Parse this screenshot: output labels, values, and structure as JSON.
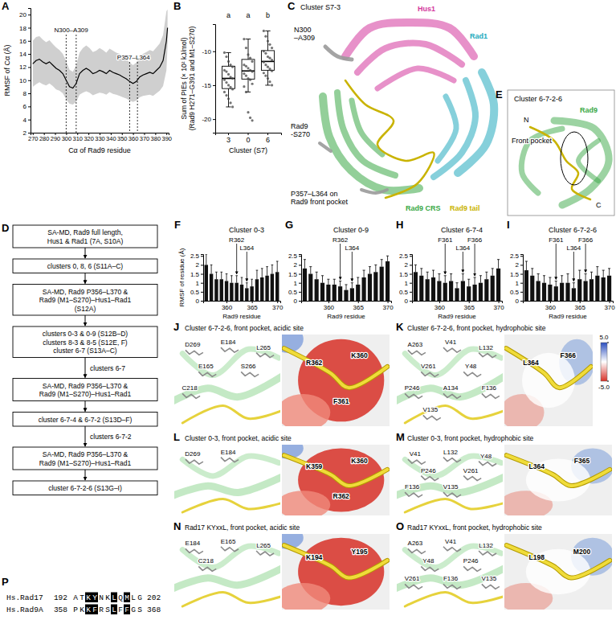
{
  "chart_data": [
    {
      "panel": "A",
      "type": "line",
      "y_label": "RMSF of Cα (Å)",
      "x_label": "Cα of Rad9 residue",
      "x": [
        270,
        273,
        276,
        279,
        282,
        285,
        288,
        291,
        294,
        297,
        300,
        303,
        306,
        309,
        312,
        315,
        318,
        321,
        324,
        327,
        330,
        333,
        336,
        339,
        342,
        345,
        348,
        351,
        354,
        357,
        360,
        363,
        366,
        369,
        372,
        375,
        378,
        381,
        384,
        387,
        390,
        391
      ],
      "series": [
        {
          "color": "#000000",
          "values": [
            12.5,
            13.0,
            13.2,
            12.8,
            12.5,
            12.8,
            12.3,
            11.8,
            11.5,
            11.0,
            10.0,
            9.0,
            8.8,
            9.5,
            11.0,
            11.5,
            11.8,
            11.5,
            11.0,
            11.2,
            11.5,
            11.3,
            11.0,
            11.5,
            11.2,
            11.0,
            10.8,
            10.5,
            10.2,
            9.8,
            9.5,
            9.8,
            10.5,
            10.8,
            11.0,
            11.2,
            11.0,
            11.5,
            12.0,
            13.0,
            16.0,
            18.0
          ],
          "sd": [
            3.5,
            3.6,
            3.5,
            3.4,
            3.3,
            3.3,
            3.2,
            3.2,
            3.1,
            3.0,
            2.9,
            2.6,
            2.5,
            2.8,
            3.2,
            3.4,
            3.5,
            3.4,
            3.3,
            3.3,
            3.4,
            3.3,
            3.2,
            3.3,
            3.3,
            3.2,
            3.2,
            3.1,
            3.0,
            2.9,
            2.8,
            2.9,
            3.1,
            3.2,
            3.3,
            3.4,
            3.4,
            3.5,
            3.6,
            3.9,
            4.5,
            2.8
          ]
        }
      ],
      "xlim": [
        268,
        392
      ],
      "xticks": [
        270,
        280,
        290,
        300,
        310,
        320,
        330,
        340,
        350,
        360,
        370,
        380,
        390
      ],
      "ylim": [
        2,
        21
      ],
      "yticks": [
        2,
        4,
        6,
        8,
        10,
        12,
        14,
        16,
        18,
        20
      ],
      "annotations": [
        {
          "text": "N300–A309",
          "x": [
            300,
            309
          ]
        },
        {
          "text": "P357–L364",
          "x": [
            357,
            364
          ]
        }
      ]
    },
    {
      "panel": "B",
      "type": "box",
      "y_label": [
        "Sum of PIEs (× 10² kJ/mol)",
        "(Rad9 H271–G391 and M1–S270)"
      ],
      "x_label": "Cluster (S7)",
      "categories": [
        "3",
        "0",
        "6"
      ],
      "boxes": [
        {
          "min": -18.2,
          "q1": -15.5,
          "median": -14.0,
          "q3": -12.2,
          "max": -10.2
        },
        {
          "min": -16.0,
          "q1": -14.1,
          "median": -12.9,
          "q3": -11.2,
          "max": -8.2
        },
        {
          "min": -15.0,
          "q1": -12.8,
          "median": -11.5,
          "q3": -9.9,
          "max": -7.0
        }
      ],
      "points": [
        [
          -10.2,
          -10.8,
          -11.5,
          -12.0,
          -12.3,
          -12.8,
          -13.0,
          -13.4,
          -13.8,
          -14.0,
          -14.2,
          -14.6,
          -15.0,
          -15.3,
          -15.6,
          -16.0,
          -16.5,
          -17.0,
          -17.6,
          -18.2
        ],
        [
          -8.2,
          -9.5,
          -10.5,
          -11.0,
          -11.5,
          -12.0,
          -12.2,
          -12.5,
          -12.8,
          -13.0,
          -13.3,
          -13.6,
          -14.0,
          -14.2,
          -14.8,
          -15.2,
          -16.0,
          -19.0,
          -19.8,
          -20.2
        ],
        [
          -7.0,
          -7.8,
          -8.5,
          -9.0,
          -9.5,
          -10.0,
          -10.3,
          -10.8,
          -11.0,
          -11.3,
          -11.6,
          -12.0,
          -12.3,
          -12.6,
          -12.9,
          -13.2,
          -13.6,
          -14.0,
          -14.5,
          -15.0
        ]
      ],
      "letters": [
        "a",
        "a",
        "b"
      ],
      "ylim": [
        -22,
        -6
      ],
      "yticks": [
        -20,
        -15,
        -10
      ]
    },
    {
      "panel": "F",
      "type": "bar",
      "title": "Cluster 0-3",
      "y_label": "RMSF of residue (Å)",
      "x_label": "Rad9 residue",
      "color": "#111111",
      "x": [
        356,
        357,
        358,
        359,
        360,
        361,
        362,
        363,
        364,
        365,
        366,
        367,
        368,
        369,
        370
      ],
      "values": [
        2.0,
        1.5,
        1.2,
        1.2,
        1.1,
        1.0,
        1.0,
        0.9,
        0.7,
        0.8,
        1.2,
        1.3,
        1.4,
        1.5,
        1.6
      ],
      "errors": [
        0.6,
        0.5,
        0.4,
        0.4,
        0.4,
        0.4,
        0.4,
        0.4,
        0.3,
        0.4,
        0.5,
        0.5,
        0.5,
        0.5,
        0.6
      ],
      "arrows": [
        {
          "text": "R362",
          "x": 362
        },
        {
          "text": "L364",
          "x": 364
        }
      ],
      "xlim": [
        355.4,
        370.6
      ],
      "xticks": [
        360,
        365,
        370
      ],
      "ylim": [
        0,
        2.6
      ],
      "yticks": [
        0,
        0.5,
        1,
        1.5,
        2,
        2.5
      ]
    },
    {
      "panel": "G",
      "type": "bar",
      "title": "Cluster 0-9",
      "x_label": "Rad9 residue",
      "color": "#111111",
      "x": [
        356,
        357,
        358,
        359,
        360,
        361,
        362,
        363,
        364,
        365,
        366,
        367,
        368,
        369,
        370
      ],
      "values": [
        1.8,
        1.5,
        1.2,
        1.0,
        0.9,
        0.9,
        0.8,
        0.6,
        0.7,
        0.9,
        1.3,
        1.5,
        1.6,
        1.9,
        2.2
      ],
      "errors": [
        0.5,
        0.4,
        0.4,
        0.4,
        0.3,
        0.3,
        0.3,
        0.3,
        0.3,
        0.4,
        0.4,
        0.4,
        0.4,
        0.4,
        0.3
      ],
      "arrows": [
        {
          "text": "R362",
          "x": 362
        },
        {
          "text": "L364",
          "x": 364
        }
      ],
      "xlim": [
        355.4,
        370.6
      ],
      "xticks": [
        360,
        365,
        370
      ],
      "ylim": [
        0,
        2.6
      ],
      "yticks": [
        0,
        0.5,
        1,
        1.5,
        2,
        2.5
      ]
    },
    {
      "panel": "H",
      "type": "bar",
      "title": "Cluster 6-7-4",
      "x_label": "Rad9 residue",
      "color": "#111111",
      "x": [
        356,
        357,
        358,
        359,
        360,
        361,
        362,
        363,
        364,
        365,
        366,
        367,
        368,
        369,
        370
      ],
      "values": [
        1.6,
        1.4,
        1.2,
        1.3,
        1.1,
        1.0,
        1.1,
        0.7,
        1.1,
        0.8,
        0.9,
        1.0,
        1.2,
        1.4,
        1.8
      ],
      "errors": [
        0.4,
        0.4,
        0.4,
        0.4,
        0.4,
        0.4,
        0.4,
        0.3,
        0.4,
        0.4,
        0.4,
        0.4,
        0.4,
        0.4,
        0.5
      ],
      "arrows": [
        {
          "text": "F361",
          "x": 361
        },
        {
          "text": "L364",
          "x": 364
        },
        {
          "text": "F366",
          "x": 366
        }
      ],
      "xlim": [
        355.4,
        370.6
      ],
      "xticks": [
        360,
        365,
        370
      ],
      "ylim": [
        0,
        2.6
      ],
      "yticks": [
        0,
        0.5,
        1,
        1.5,
        2,
        2.5
      ]
    },
    {
      "panel": "I",
      "type": "bar",
      "title": "Cluster 6-7-2-6",
      "x_label": "Rad9 residue",
      "color": "#111111",
      "x": [
        356,
        357,
        358,
        359,
        360,
        361,
        362,
        363,
        364,
        365,
        366,
        367,
        368,
        369,
        370
      ],
      "values": [
        1.7,
        1.4,
        1.1,
        1.0,
        0.9,
        0.8,
        1.0,
        1.0,
        0.7,
        1.2,
        1.1,
        1.2,
        1.4,
        1.3,
        1.4
      ],
      "errors": [
        0.5,
        0.4,
        0.4,
        0.4,
        0.4,
        0.3,
        0.4,
        0.5,
        0.3,
        0.5,
        0.4,
        0.4,
        0.5,
        0.4,
        0.4
      ],
      "arrows": [
        {
          "text": "F361",
          "x": 361
        },
        {
          "text": "L364",
          "x": 364
        },
        {
          "text": "F366",
          "x": 366
        }
      ],
      "xlim": [
        355.4,
        370.6
      ],
      "xticks": [
        360,
        365,
        370
      ],
      "ylim": [
        0,
        2.6
      ],
      "yticks": [
        0,
        0.5,
        1,
        1.5,
        2,
        2.5
      ]
    }
  ],
  "flowchart": {
    "panel": "D",
    "steps": [
      {
        "lines": [
          "SA-MD, Rad9 full length,",
          "Hus1 & Rad1 (7A, S10A)"
        ]
      },
      {
        "lines": [
          "clusters 0, 8, 6 (S11A–C)"
        ]
      },
      {
        "lines": [
          "SA-MD, Rad9 P356–L370 &",
          "Rad9 (M1–S270)–Hus1–Rad1",
          "(S12A)"
        ]
      },
      {
        "lines": [
          "clusters 0-3 & 0-9 (S12B–D)",
          "clusters 8-3 & 8-5 (S12E, F)",
          "cluster 6-7 (S13A–C)"
        ]
      },
      {
        "lines": [
          "SA-MD, Rad9 P356–L370 &",
          "Rad9 (M1–S270)–Hus1–Rad1"
        ],
        "arrow_label": "clusters 6-7"
      },
      {
        "lines": [
          "cluster 6-7-4 & 6-7-2 (S13D–F)"
        ]
      },
      {
        "lines": [
          "SA-MD, Rad9 P356–L370 &",
          "Rad9 (M1–S270)–Hus1–Rad1"
        ],
        "arrow_label": "clusters 6-7-2"
      },
      {
        "lines": [
          "cluster 6-7-2-6 (S13G–I)"
        ]
      }
    ]
  },
  "structures": [
    {
      "panel": "C",
      "title": "Cluster S7-3",
      "labels": [
        {
          "lines": [
            "Hus1"
          ],
          "color": "#d4379c"
        },
        {
          "lines": [
            "Rad1"
          ],
          "color": "#22a9bd"
        },
        {
          "lines": [
            "N300",
            "–A309"
          ]
        },
        {
          "lines": [
            "Rad9",
            "-S270"
          ]
        },
        {
          "lines": [
            "P357–L364 on",
            "Rad9 front pocket"
          ]
        },
        {
          "lines": [
            "Rad9 CRS"
          ],
          "color": "#3aa845"
        },
        {
          "lines": [
            "Rad9 tail"
          ],
          "color": "#c9b300"
        }
      ]
    },
    {
      "panel": "E",
      "title": "Cluster 6-7-2-6",
      "labels": [
        {
          "lines": [
            "Rad9"
          ],
          "color": "#3aa845"
        },
        {
          "lines": [
            "N"
          ]
        },
        {
          "lines": [
            "C"
          ]
        },
        {
          "lines": [
            "Front pocket"
          ]
        }
      ]
    },
    {
      "panel": "J",
      "title": "Cluster 6-7-2-6, front pocket, acidic site",
      "residues": [
        "D269",
        "E184",
        "L265",
        "E165",
        "S266",
        "C218"
      ],
      "surface_residues": [
        "R362",
        "K360",
        "F361"
      ]
    },
    {
      "panel": "K",
      "title": "Cluster 6-7-2-6, front pocket, hydrophobic site",
      "residues": [
        "A263",
        "V41",
        "L132",
        "V261",
        "Y48",
        "P246",
        "A134",
        "F136",
        "V135"
      ],
      "surface_residues": [
        "L364",
        "F366"
      ],
      "colorbar": {
        "range": [
          -5,
          5
        ],
        "ticks": [
          {
            "value": 5,
            "label": "5.0"
          },
          {
            "value": -5,
            "label": "-5.0"
          }
        ]
      }
    },
    {
      "panel": "L",
      "title": "Cluster 0-3, front pocket, acidic site",
      "residues": [
        "D269",
        "E184"
      ],
      "surface_residues": [
        "K359",
        "K360",
        "R362"
      ]
    },
    {
      "panel": "M",
      "title": "Cluster 0-3, front pocket, hydrophobic site",
      "residues": [
        "V41",
        "L132",
        "Y48",
        "P246",
        "V261",
        "F136",
        "V135"
      ],
      "surface_residues": [
        "L364",
        "F365"
      ]
    },
    {
      "panel": "N",
      "title": "Rad17 KYxxL, front pocket, acidic site",
      "residues": [
        "E184",
        "E165",
        "L265",
        "C218"
      ],
      "surface_residues": [
        "K194",
        "Y195"
      ]
    },
    {
      "panel": "O",
      "title": "Rad17 KYxxL, front pocket, hydrophobic site",
      "residues": [
        "A263",
        "V41",
        "L132",
        "Y48",
        "P246",
        "V261",
        "F136",
        "V135"
      ],
      "surface_residues": [
        "L198",
        "M200"
      ]
    }
  ],
  "alignment": {
    "panel": "P",
    "rows": [
      {
        "name": "Hs.Rad17",
        "start": 192,
        "seq": "ATKYNKLQMLG",
        "end": 202
      },
      {
        "name": "Hs.Rad9A",
        "start": 358,
        "seq": "PKKFRSLFFGS",
        "end": 368
      }
    ],
    "highlight": [
      2,
      3,
      6,
      8
    ]
  }
}
